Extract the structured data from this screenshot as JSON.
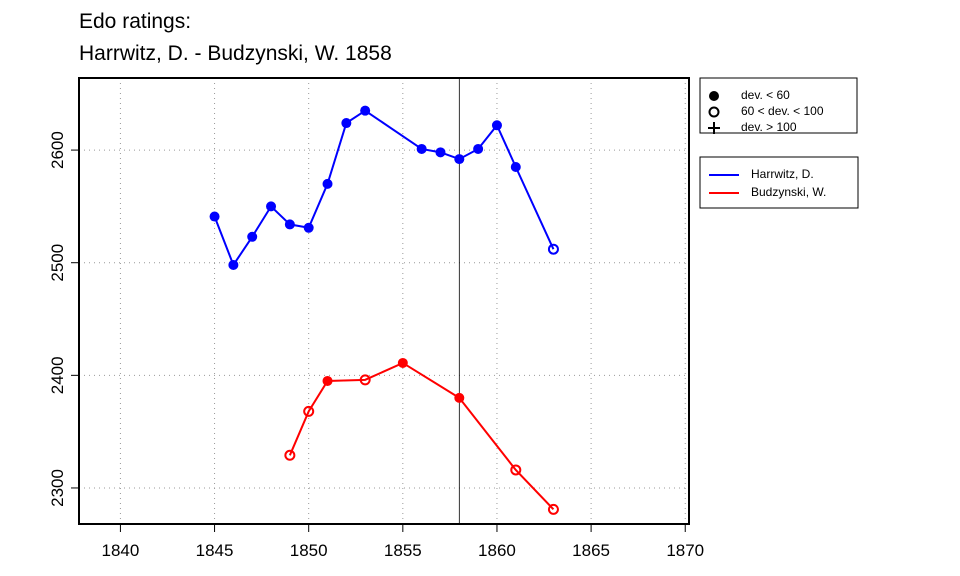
{
  "chart_data": {
    "type": "line",
    "title": "Edo ratings:",
    "subtitle": "Harrwitz, D. - Budzynski, W. 1858",
    "xlim": [
      1837.8,
      1870.2
    ],
    "ylim": [
      2268,
      2664
    ],
    "xticks": [
      1840,
      1845,
      1850,
      1855,
      1860,
      1865,
      1870
    ],
    "yticks": [
      2300,
      2400,
      2500,
      2600
    ],
    "grid": true,
    "vline": 1858,
    "symbol_legend": [
      "dev. < 60",
      "60 < dev. < 100",
      "dev. > 100"
    ],
    "series": [
      {
        "name": "Harrwitz, D.",
        "color": "#0000ff",
        "x": [
          1845,
          1846,
          1847,
          1848,
          1849,
          1850,
          1851,
          1852,
          1853,
          1856,
          1857,
          1858,
          1859,
          1860,
          1861,
          1863
        ],
        "values": [
          2541,
          2498,
          2523,
          2550,
          2534,
          2531,
          2570,
          2624,
          2635,
          2601,
          2598,
          2592,
          2601,
          2622,
          2585,
          2512
        ],
        "symbols": [
          0,
          0,
          0,
          0,
          0,
          0,
          0,
          0,
          0,
          0,
          0,
          0,
          0,
          0,
          0,
          1
        ]
      },
      {
        "name": "Budzynski, W.",
        "color": "#ff0000",
        "x": [
          1849,
          1850,
          1851,
          1853,
          1855,
          1858,
          1861,
          1863
        ],
        "values": [
          2329,
          2368,
          2395,
          2396,
          2411,
          2380,
          2316,
          2281
        ],
        "symbols": [
          1,
          1,
          0,
          1,
          0,
          0,
          1,
          1
        ]
      }
    ]
  }
}
